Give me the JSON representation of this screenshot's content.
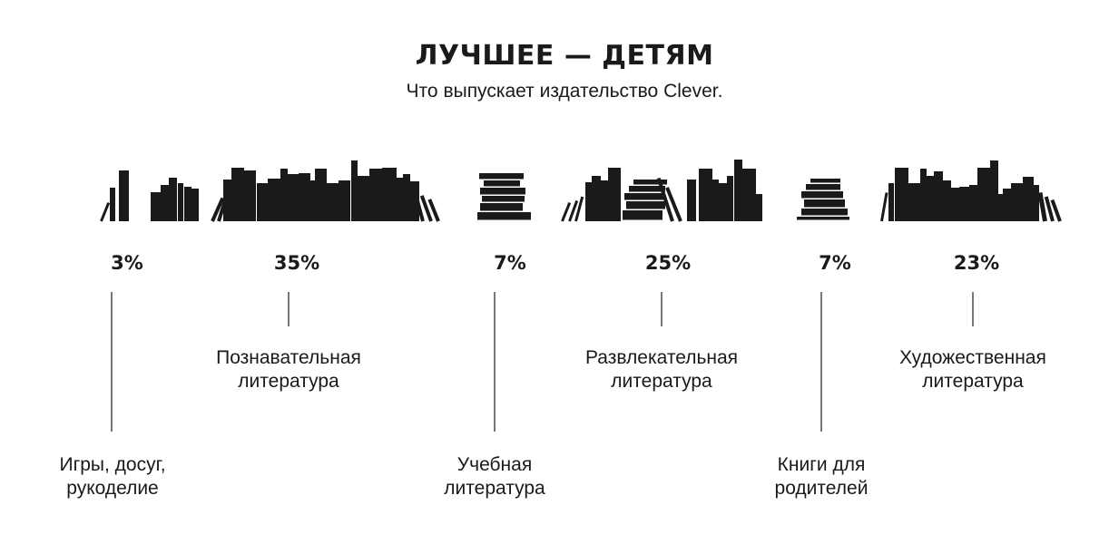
{
  "chart_data": {
    "type": "bar",
    "title": "ЛУЧШЕЕ — ДЕТЯМ",
    "subtitle": "Что выпускает издательство Clever.",
    "unit": "%",
    "categories": [
      {
        "label_lines": [
          "Игры, досуг,",
          "рукоделие"
        ],
        "value": 3,
        "value_label": "3%"
      },
      {
        "label_lines": [
          "Познавательная",
          "литература"
        ],
        "value": 35,
        "value_label": "35%"
      },
      {
        "label_lines": [
          "Учебная",
          "литература"
        ],
        "value": 7,
        "value_label": "7%"
      },
      {
        "label_lines": [
          "Развлекательная",
          "литература"
        ],
        "value": 25,
        "value_label": "25%"
      },
      {
        "label_lines": [
          "Книги для",
          "родителей"
        ],
        "value": 7,
        "value_label": "7%"
      },
      {
        "label_lines": [
          "Художественная",
          "литература"
        ],
        "value": 23,
        "value_label": "23%"
      }
    ]
  }
}
